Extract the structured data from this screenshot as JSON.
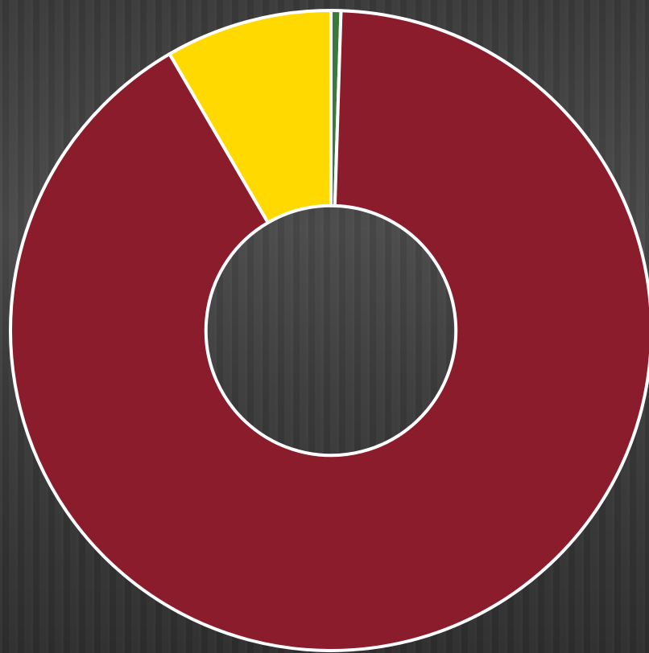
{
  "chart_data": {
    "type": "donut",
    "categories": [
      null,
      null,
      null
    ],
    "values": [
      0.5,
      91.1,
      8.4
    ],
    "colors": [
      "#3a7a3a",
      "#8b1c2b",
      "#ffd900"
    ],
    "start_angle": 0,
    "direction": "clockwise",
    "inner_radius_ratio": 0.39
  }
}
